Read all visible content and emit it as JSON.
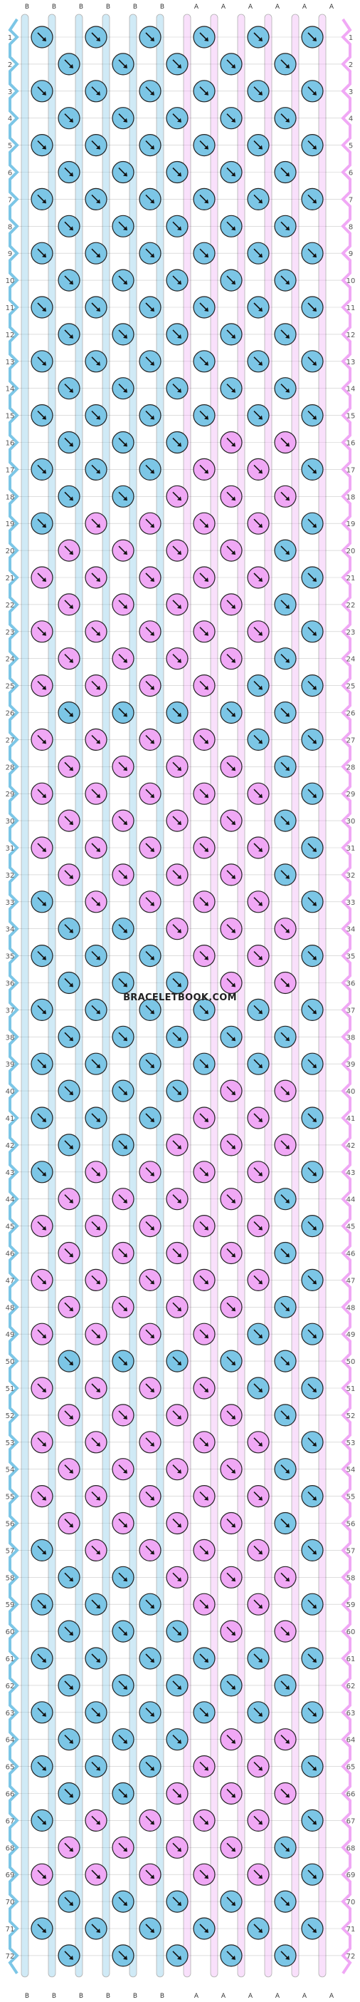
{
  "watermark": "BRACELETBOOK.COM",
  "thread_letters": [
    "B",
    "B",
    "B",
    "B",
    "B",
    "B",
    "A",
    "A",
    "A",
    "A",
    "A",
    "A"
  ],
  "colors": {
    "A": "#f0a8f5",
    "B": "#7cc6e6",
    "outline": "#222222",
    "grid": "#c9c9c9"
  },
  "row_count": 72,
  "row_labels": [
    "1",
    "2",
    "3",
    "4",
    "5",
    "6",
    "7",
    "8",
    "9",
    "10",
    "11",
    "12",
    "13",
    "14",
    "15",
    "16",
    "17",
    "18",
    "19",
    "20",
    "21",
    "22",
    "23",
    "24",
    "25",
    "26",
    "27",
    "28",
    "29",
    "30",
    "31",
    "32",
    "33",
    "34",
    "35",
    "36",
    "37",
    "38",
    "39",
    "40",
    "41",
    "42",
    "43",
    "44",
    "45",
    "46",
    "47",
    "48",
    "49",
    "50",
    "51",
    "52",
    "53",
    "54",
    "55",
    "56",
    "57",
    "58",
    "59",
    "60",
    "61",
    "62",
    "63",
    "64",
    "65",
    "66",
    "67",
    "68",
    "69",
    "70",
    "71",
    "72"
  ],
  "knot_direction": "forward-right"
}
